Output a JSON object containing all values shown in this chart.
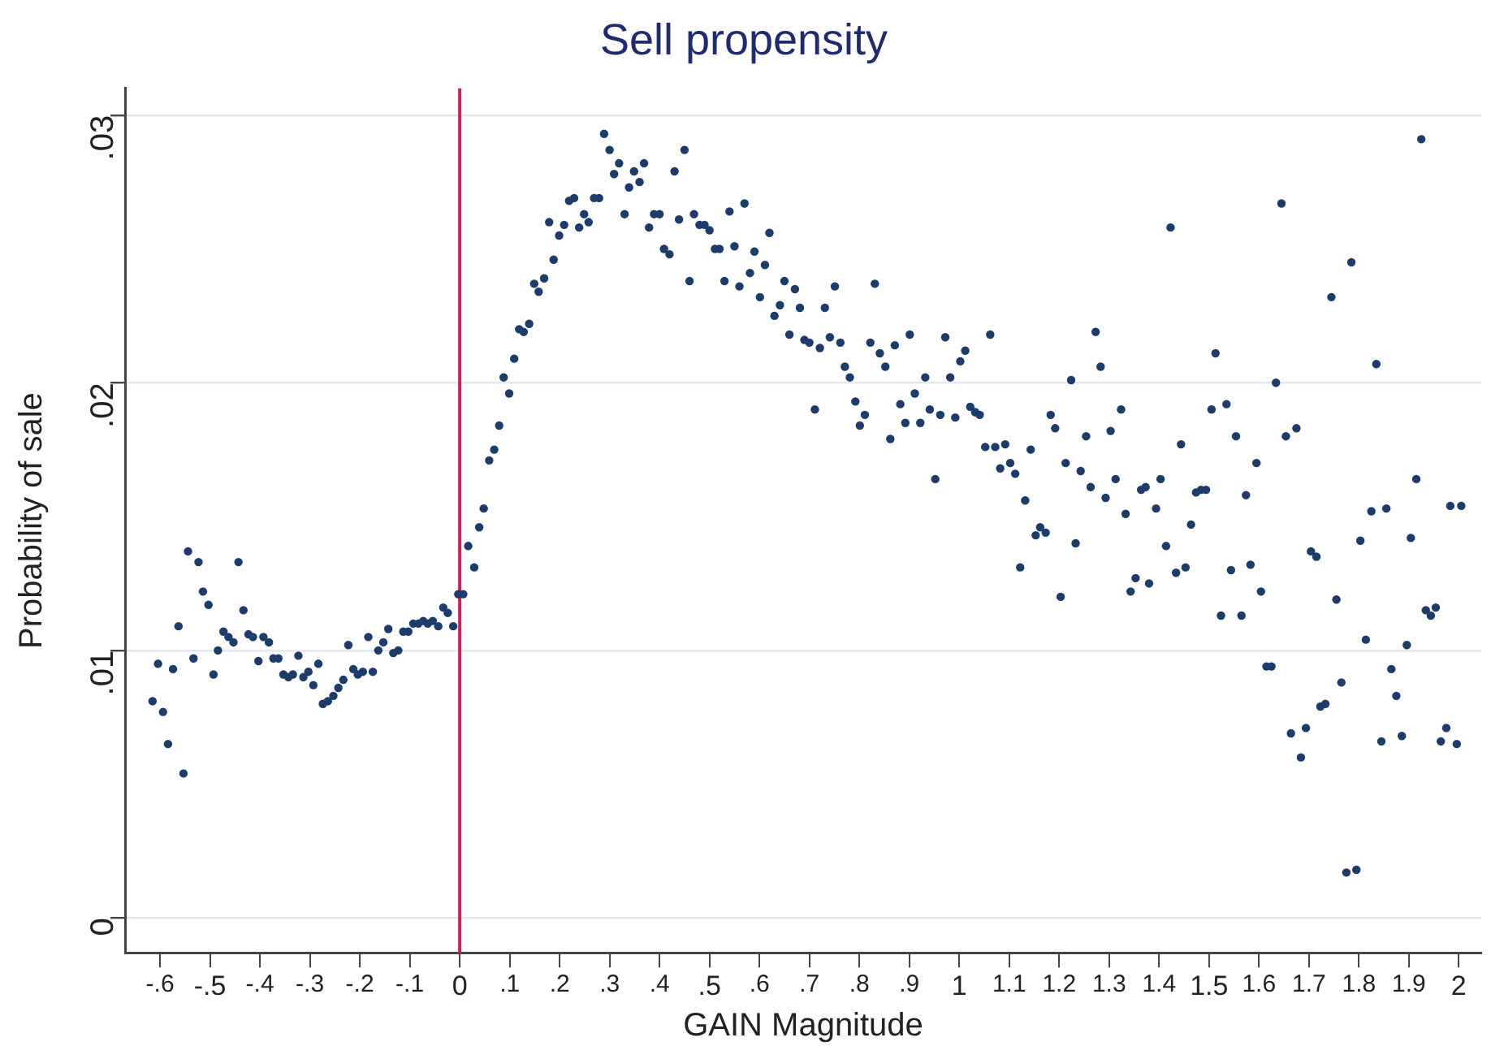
{
  "chart_data": {
    "type": "scatter",
    "title": "Sell propensity",
    "xlabel": "GAIN Magnitude",
    "ylabel": "Probability of sale",
    "color": "#1c3c6c",
    "marker": "circle",
    "grid": "y",
    "x": [
      -0.615,
      -0.604,
      -0.594,
      -0.584,
      -0.574,
      -0.563,
      -0.553,
      -0.544,
      -0.533,
      -0.523,
      -0.514,
      -0.503,
      -0.493,
      -0.484,
      -0.473,
      -0.463,
      -0.453,
      -0.443,
      -0.433,
      -0.423,
      -0.414,
      -0.403,
      -0.393,
      -0.382,
      -0.373,
      -0.363,
      -0.353,
      -0.343,
      -0.334,
      -0.323,
      -0.313,
      -0.303,
      -0.293,
      -0.283,
      -0.274,
      -0.264,
      -0.253,
      -0.243,
      -0.233,
      -0.223,
      -0.213,
      -0.204,
      -0.194,
      -0.183,
      -0.174,
      -0.163,
      -0.153,
      -0.143,
      -0.133,
      -0.123,
      -0.113,
      -0.103,
      -0.093,
      -0.083,
      -0.073,
      -0.064,
      -0.054,
      -0.043,
      -0.033,
      -0.024,
      -0.013,
      -0.003,
      0.007,
      0.017,
      0.029,
      0.039,
      0.048,
      0.059,
      0.069,
      0.079,
      0.088,
      0.099,
      0.109,
      0.119,
      0.128,
      0.139,
      0.149,
      0.158,
      0.169,
      0.179,
      0.188,
      0.199,
      0.209,
      0.219,
      0.229,
      0.239,
      0.249,
      0.258,
      0.269,
      0.279,
      0.289,
      0.3,
      0.309,
      0.319,
      0.33,
      0.339,
      0.349,
      0.36,
      0.369,
      0.379,
      0.389,
      0.4,
      0.409,
      0.42,
      0.43,
      0.439,
      0.45,
      0.46,
      0.469,
      0.48,
      0.49,
      0.5,
      0.511,
      0.52,
      0.53,
      0.54,
      0.55,
      0.56,
      0.57,
      0.581,
      0.59,
      0.601,
      0.611,
      0.62,
      0.63,
      0.641,
      0.65,
      0.66,
      0.671,
      0.681,
      0.69,
      0.7,
      0.711,
      0.721,
      0.731,
      0.741,
      0.751,
      0.762,
      0.771,
      0.781,
      0.792,
      0.801,
      0.811,
      0.822,
      0.831,
      0.841,
      0.852,
      0.862,
      0.871,
      0.882,
      0.892,
      0.901,
      0.911,
      0.922,
      0.932,
      0.941,
      0.952,
      0.962,
      0.972,
      0.982,
      0.992,
      1.002,
      1.012,
      1.022,
      1.032,
      1.041,
      1.052,
      1.062,
      1.072,
      1.082,
      1.092,
      1.102,
      1.112,
      1.122,
      1.132,
      1.143,
      1.153,
      1.162,
      1.173,
      1.183,
      1.192,
      1.203,
      1.213,
      1.224,
      1.233,
      1.243,
      1.254,
      1.263,
      1.273,
      1.283,
      1.293,
      1.303,
      1.313,
      1.324,
      1.333,
      1.343,
      1.353,
      1.364,
      1.373,
      1.38,
      1.394,
      1.403,
      1.414,
      1.423,
      1.434,
      1.444,
      1.453,
      1.464,
      1.474,
      1.484,
      1.494,
      1.505,
      1.513,
      1.524,
      1.535,
      1.544,
      1.554,
      1.565,
      1.574,
      1.583,
      1.595,
      1.604,
      1.615,
      1.625,
      1.634,
      1.645,
      1.654,
      1.664,
      1.675,
      1.684,
      1.694,
      1.704,
      1.715,
      1.723,
      1.733,
      1.745,
      1.755,
      1.765,
      1.775,
      1.785,
      1.795,
      1.803,
      1.814,
      1.825,
      1.835,
      1.845,
      1.855,
      1.865,
      1.875,
      1.886,
      1.896,
      1.904,
      1.915,
      1.925,
      1.934,
      1.944,
      1.954,
      1.964,
      1.975,
      1.983,
      1.996,
      2.005
    ],
    "values": [
      0.0081,
      0.0095,
      0.0077,
      0.0065,
      0.0093,
      0.0109,
      0.0054,
      0.0137,
      0.0097,
      0.0133,
      0.0122,
      0.0117,
      0.0091,
      0.01,
      0.0107,
      0.0105,
      0.0103,
      0.0133,
      0.0115,
      0.0106,
      0.0105,
      0.0096,
      0.0105,
      0.0103,
      0.0097,
      0.0097,
      0.0091,
      0.009,
      0.0091,
      0.0098,
      0.009,
      0.0092,
      0.0087,
      0.0095,
      0.008,
      0.0081,
      0.0083,
      0.0086,
      0.0089,
      0.0102,
      0.0093,
      0.0091,
      0.0092,
      0.0105,
      0.0092,
      0.01,
      0.0103,
      0.0108,
      0.0099,
      0.01,
      0.0107,
      0.0107,
      0.011,
      0.011,
      0.0111,
      0.011,
      0.0111,
      0.0109,
      0.0116,
      0.0114,
      0.0109,
      0.0121,
      0.0121,
      0.0139,
      0.0131,
      0.0146,
      0.0153,
      0.0171,
      0.0175,
      0.0184,
      0.0202,
      0.0196,
      0.0209,
      0.022,
      0.0219,
      0.0222,
      0.0237,
      0.0234,
      0.0239,
      0.026,
      0.0246,
      0.0255,
      0.0259,
      0.0268,
      0.0269,
      0.0258,
      0.0263,
      0.026,
      0.0269,
      0.0269,
      0.0293,
      0.0287,
      0.0278,
      0.0282,
      0.0263,
      0.0273,
      0.0279,
      0.0275,
      0.0282,
      0.0258,
      0.0263,
      0.0263,
      0.025,
      0.0248,
      0.0279,
      0.0261,
      0.0287,
      0.0238,
      0.0263,
      0.0259,
      0.0259,
      0.0257,
      0.025,
      0.025,
      0.0238,
      0.0264,
      0.0251,
      0.0236,
      0.0267,
      0.0241,
      0.0249,
      0.0232,
      0.0244,
      0.0256,
      0.0225,
      0.0229,
      0.0238,
      0.0218,
      0.0235,
      0.0228,
      0.0216,
      0.0215,
      0.019,
      0.0213,
      0.0228,
      0.0217,
      0.0236,
      0.0215,
      0.0206,
      0.0202,
      0.0193,
      0.0184,
      0.0188,
      0.0215,
      0.0237,
      0.0211,
      0.0206,
      0.0179,
      0.0214,
      0.0192,
      0.0185,
      0.0218,
      0.0196,
      0.0185,
      0.0202,
      0.019,
      0.0164,
      0.0188,
      0.0217,
      0.0202,
      0.0187,
      0.0208,
      0.0212,
      0.0191,
      0.0189,
      0.0188,
      0.0176,
      0.0218,
      0.0176,
      0.0168,
      0.0177,
      0.017,
      0.0166,
      0.0131,
      0.0156,
      0.0175,
      0.0143,
      0.0146,
      0.0144,
      0.0188,
      0.0183,
      0.012,
      0.017,
      0.0201,
      0.014,
      0.0167,
      0.018,
      0.0161,
      0.0219,
      0.0206,
      0.0157,
      0.0182,
      0.0164,
      0.019,
      0.0151,
      0.0122,
      0.0127,
      0.016,
      0.0161,
      0.0125,
      0.0153,
      0.0164,
      0.0139,
      0.0258,
      0.0129,
      0.0177,
      0.0131,
      0.0147,
      0.0159,
      0.016,
      0.016,
      0.019,
      0.0211,
      0.0113,
      0.0192,
      0.013,
      0.018,
      0.0113,
      0.0158,
      0.0132,
      0.017,
      0.0122,
      0.0094,
      0.0094,
      0.02,
      0.0267,
      0.018,
      0.0069,
      0.0183,
      0.006,
      0.0071,
      0.0137,
      0.0135,
      0.0079,
      0.008,
      0.0232,
      0.0119,
      0.0088,
      0.0017,
      0.0245,
      0.0018,
      0.0141,
      0.0104,
      0.0152,
      0.0207,
      0.0066,
      0.0153,
      0.0093,
      0.0083,
      0.0068,
      0.0102,
      0.0142,
      0.0164,
      0.0291,
      0.0115,
      0.0113,
      0.0116,
      0.0066,
      0.0071,
      0.0154,
      0.0065,
      0.0154
    ],
    "xlim": [
      -0.67,
      2.045
    ],
    "ylim": [
      -0.0013,
      0.031
    ],
    "xticks": [
      {
        "value": -0.6,
        "label": "-.6"
      },
      {
        "value": -0.5,
        "label": "-.5"
      },
      {
        "value": -0.4,
        "label": "-.4"
      },
      {
        "value": -0.3,
        "label": "-.3"
      },
      {
        "value": -0.2,
        "label": "-.2"
      },
      {
        "value": -0.1,
        "label": "-.1"
      },
      0,
      {
        "value": 0.1,
        "label": ".1"
      },
      {
        "value": 0.2,
        "label": ".2"
      },
      {
        "value": 0.3,
        "label": ".3"
      },
      {
        "value": 0.4,
        "label": ".4"
      },
      {
        "value": 0.5,
        "label": ".5"
      },
      {
        "value": 0.6,
        "label": ".6"
      },
      {
        "value": 0.7,
        "label": ".7"
      },
      {
        "value": 0.8,
        "label": ".8"
      },
      {
        "value": 0.9,
        "label": ".9"
      },
      1,
      1.1,
      1.2,
      1.3,
      1.4,
      1.5,
      1.6,
      1.7,
      1.8,
      1.9,
      2
    ],
    "yticks": [
      0,
      {
        "value": 0.01,
        "label": ".01"
      },
      {
        "value": 0.02,
        "label": ".02"
      },
      {
        "value": 0.03,
        "label": ".03"
      }
    ],
    "ref_lines": [
      {
        "axis": "x",
        "value": 0,
        "color": "#c8245a"
      }
    ]
  }
}
